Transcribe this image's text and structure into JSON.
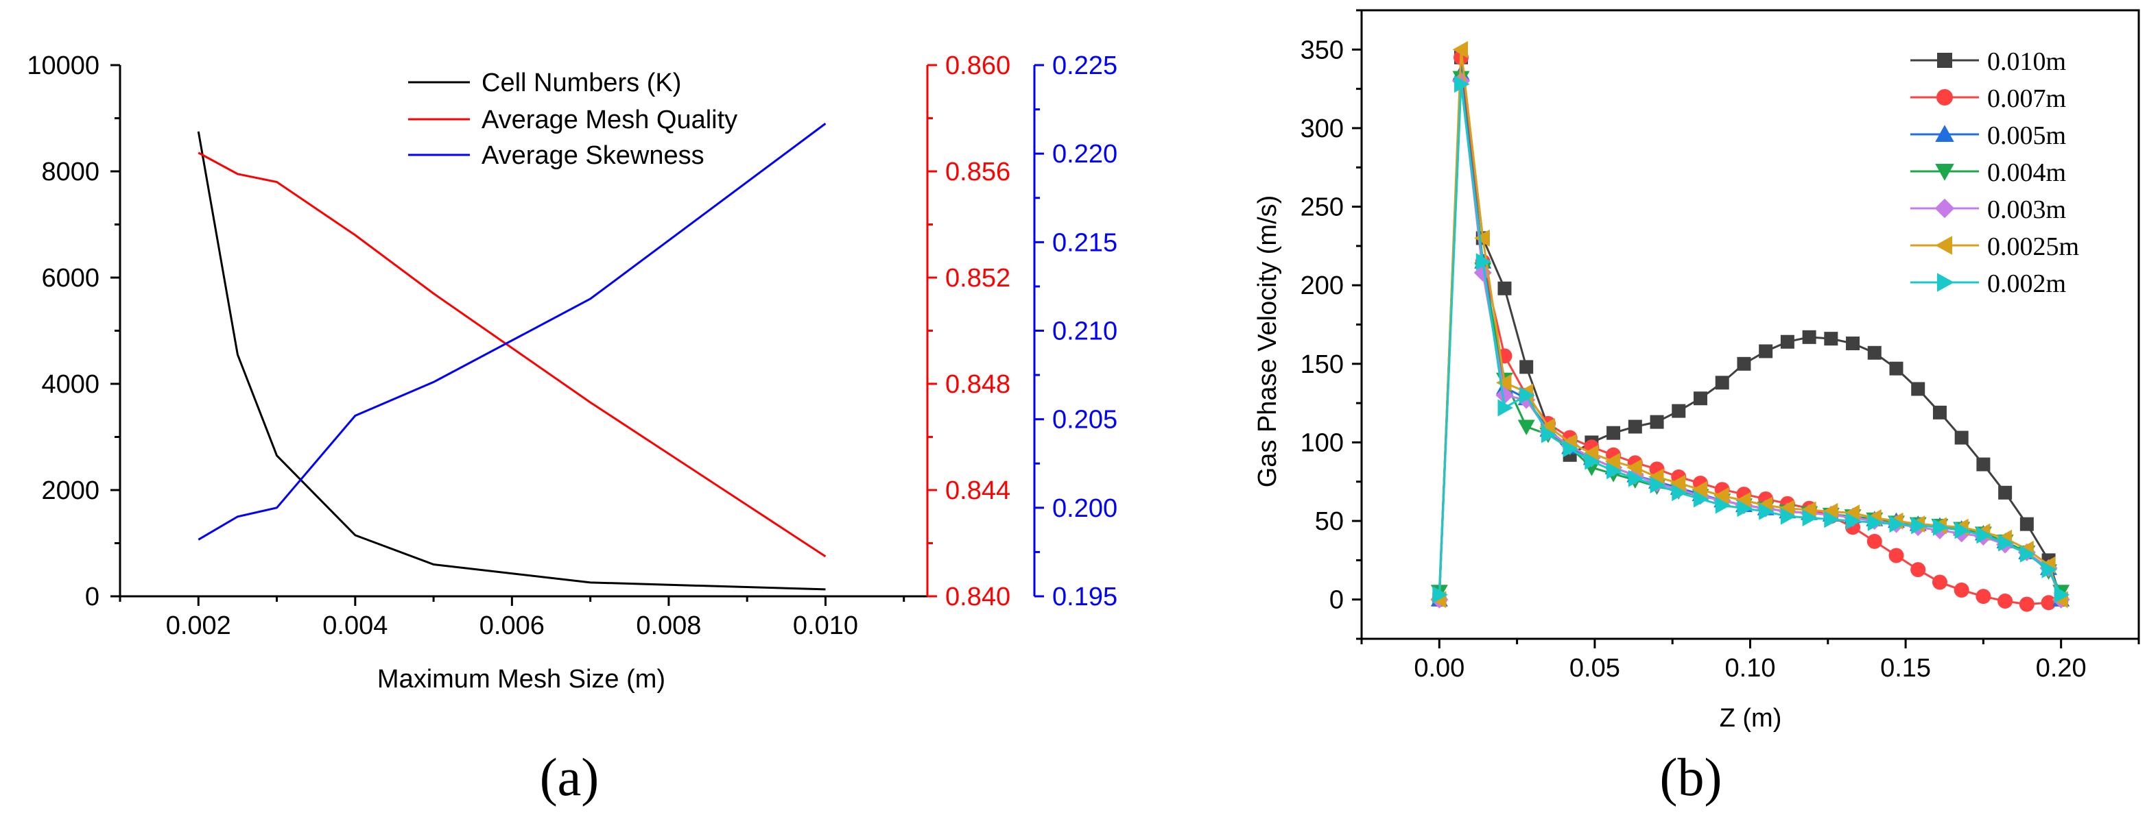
{
  "chart_data": [
    {
      "panel_label": "(a)",
      "type": "line",
      "xlabel": "Maximum Mesh Size (m)",
      "x": [
        0.002,
        0.0025,
        0.003,
        0.004,
        0.005,
        0.007,
        0.01
      ],
      "xlim": [
        0.001,
        0.0113
      ],
      "xticks": [
        "0.002",
        "0.004",
        "0.006",
        "0.008",
        "0.010"
      ],
      "series": [
        {
          "name": "Cell Numbers (K)",
          "axis": "left",
          "color": "#000000",
          "values": [
            8750,
            4550,
            2650,
            1150,
            600,
            260,
            130
          ]
        },
        {
          "name": "Average Mesh Quality",
          "axis": "right1",
          "color": "#ff0000",
          "values": [
            0.8567,
            0.8559,
            0.8556,
            0.8536,
            0.8514,
            0.8473,
            0.8415
          ]
        },
        {
          "name": "Average Skewness",
          "axis": "right2",
          "color": "#0000ff",
          "values": [
            0.1982,
            0.1995,
            0.2,
            0.2052,
            0.2071,
            0.2118,
            0.2217
          ]
        }
      ],
      "axes": {
        "left": {
          "ylim": [
            0,
            10000
          ],
          "ticks": [
            "0",
            "2000",
            "4000",
            "6000",
            "8000",
            "10000"
          ],
          "color": "#000000"
        },
        "right1": {
          "ylim": [
            0.84,
            0.86
          ],
          "ticks": [
            "0.840",
            "0.844",
            "0.848",
            "0.852",
            "0.856",
            "0.860"
          ],
          "color": "#ff0000"
        },
        "right2": {
          "ylim": [
            0.195,
            0.225
          ],
          "ticks": [
            "0.195",
            "0.200",
            "0.205",
            "0.210",
            "0.215",
            "0.220",
            "0.225"
          ],
          "color": "#0000ff"
        }
      }
    },
    {
      "panel_label": "(b)",
      "type": "line",
      "xlabel": "Z (m)",
      "ylabel": "Gas Phase Velocity (m/s)",
      "xlim": [
        -0.025,
        0.225
      ],
      "ylim": [
        -25,
        375
      ],
      "xticks": [
        "0.00",
        "0.05",
        "0.10",
        "0.15",
        "0.20"
      ],
      "yticks": [
        "0",
        "50",
        "100",
        "150",
        "200",
        "250",
        "300",
        "350"
      ],
      "series": [
        {
          "name": "0.010m",
          "color": "#404040",
          "marker": "square",
          "x": [
            0,
            0.007,
            0.014,
            0.021,
            0.028,
            0.035,
            0.042,
            0.049,
            0.056,
            0.063,
            0.07,
            0.077,
            0.084,
            0.091,
            0.098,
            0.105,
            0.112,
            0.119,
            0.126,
            0.133,
            0.14,
            0.147,
            0.154,
            0.161,
            0.168,
            0.175,
            0.182,
            0.189,
            0.196,
            0.2
          ],
          "y": [
            0,
            345,
            230,
            198,
            148,
            110,
            92,
            100,
            106,
            110,
            113,
            120,
            128,
            138,
            150,
            158,
            164,
            167,
            166,
            163,
            157,
            147,
            134,
            119,
            103,
            86,
            68,
            48,
            25,
            0
          ]
        },
        {
          "name": "0.007m",
          "color": "#ff4040",
          "marker": "circle",
          "x": [
            0,
            0.007,
            0.014,
            0.021,
            0.028,
            0.035,
            0.042,
            0.049,
            0.056,
            0.063,
            0.07,
            0.077,
            0.084,
            0.091,
            0.098,
            0.105,
            0.112,
            0.119,
            0.126,
            0.133,
            0.14,
            0.147,
            0.154,
            0.161,
            0.168,
            0.175,
            0.182,
            0.189,
            0.196,
            0.2
          ],
          "y": [
            0,
            345,
            215,
            155,
            130,
            112,
            103,
            97,
            92,
            87,
            83,
            78,
            74,
            70,
            67,
            64,
            61,
            58,
            53,
            46,
            37,
            28,
            19,
            11,
            6,
            2,
            -1,
            -3,
            -2,
            0
          ]
        },
        {
          "name": "0.005m",
          "color": "#1f6fe0",
          "marker": "triangle-up",
          "x": [
            0,
            0.007,
            0.014,
            0.021,
            0.028,
            0.035,
            0.042,
            0.049,
            0.056,
            0.063,
            0.07,
            0.077,
            0.084,
            0.091,
            0.098,
            0.105,
            0.112,
            0.119,
            0.126,
            0.133,
            0.14,
            0.147,
            0.154,
            0.161,
            0.168,
            0.175,
            0.182,
            0.189,
            0.196,
            0.2
          ],
          "y": [
            0,
            335,
            215,
            135,
            128,
            108,
            97,
            90,
            84,
            79,
            75,
            71,
            67,
            63,
            60,
            58,
            56,
            55,
            54,
            53,
            51,
            50,
            48,
            47,
            45,
            42,
            37,
            30,
            20,
            0
          ]
        },
        {
          "name": "0.004m",
          "color": "#1aa84a",
          "marker": "triangle-down",
          "x": [
            0,
            0.007,
            0.014,
            0.021,
            0.028,
            0.035,
            0.042,
            0.049,
            0.056,
            0.063,
            0.07,
            0.077,
            0.084,
            0.091,
            0.098,
            0.105,
            0.112,
            0.119,
            0.126,
            0.133,
            0.14,
            0.147,
            0.154,
            0.161,
            0.168,
            0.175,
            0.182,
            0.189,
            0.196,
            0.2
          ],
          "y": [
            5,
            332,
            210,
            140,
            110,
            105,
            97,
            84,
            80,
            76,
            72,
            69,
            66,
            63,
            60,
            58,
            56,
            55,
            54,
            53,
            51,
            49,
            48,
            47,
            45,
            42,
            37,
            30,
            18,
            5
          ]
        },
        {
          "name": "0.003m",
          "color": "#c77be8",
          "marker": "diamond",
          "x": [
            0,
            0.007,
            0.014,
            0.021,
            0.028,
            0.035,
            0.042,
            0.049,
            0.056,
            0.063,
            0.07,
            0.077,
            0.084,
            0.091,
            0.098,
            0.105,
            0.112,
            0.119,
            0.126,
            0.133,
            0.14,
            0.147,
            0.154,
            0.161,
            0.168,
            0.175,
            0.182,
            0.189,
            0.196,
            0.2
          ],
          "y": [
            0,
            330,
            208,
            130,
            127,
            107,
            98,
            90,
            84,
            79,
            74,
            70,
            66,
            63,
            60,
            58,
            56,
            55,
            54,
            52,
            50,
            48,
            46,
            44,
            42,
            40,
            35,
            30,
            20,
            0
          ]
        },
        {
          "name": "0.0025m",
          "color": "#d9a01a",
          "marker": "triangle-left",
          "x": [
            0,
            0.007,
            0.014,
            0.021,
            0.028,
            0.035,
            0.042,
            0.049,
            0.056,
            0.063,
            0.07,
            0.077,
            0.084,
            0.091,
            0.098,
            0.105,
            0.112,
            0.119,
            0.126,
            0.133,
            0.14,
            0.147,
            0.154,
            0.161,
            0.168,
            0.175,
            0.182,
            0.189,
            0.196,
            0.2
          ],
          "y": [
            0,
            350,
            230,
            138,
            132,
            110,
            100,
            93,
            88,
            84,
            78,
            74,
            70,
            66,
            63,
            60,
            58,
            57,
            56,
            55,
            52,
            50,
            48,
            47,
            46,
            43,
            39,
            32,
            22,
            0
          ]
        },
        {
          "name": "0.002m",
          "color": "#19c8c8",
          "marker": "triangle-right",
          "x": [
            0,
            0.007,
            0.014,
            0.021,
            0.028,
            0.035,
            0.042,
            0.049,
            0.056,
            0.063,
            0.07,
            0.077,
            0.084,
            0.091,
            0.098,
            0.105,
            0.112,
            0.119,
            0.126,
            0.133,
            0.14,
            0.147,
            0.154,
            0.161,
            0.168,
            0.175,
            0.182,
            0.189,
            0.196,
            0.2
          ],
          "y": [
            3,
            328,
            215,
            122,
            130,
            105,
            96,
            88,
            82,
            77,
            73,
            68,
            64,
            60,
            58,
            56,
            53,
            52,
            51,
            50,
            49,
            48,
            47,
            46,
            44,
            41,
            36,
            29,
            19,
            3
          ]
        }
      ]
    }
  ]
}
